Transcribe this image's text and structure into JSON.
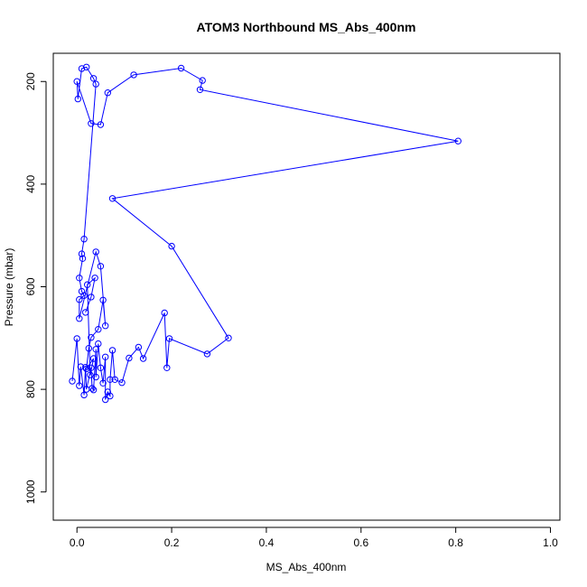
{
  "chart_data": {
    "type": "line",
    "title": "ATOM3 Northbound MS_Abs_400nm",
    "xlabel": "MS_Abs_400nm",
    "ylabel": "Pressure (mbar)",
    "xlim": [
      -0.05,
      1.02
    ],
    "ylim": [
      1055,
      145
    ],
    "y_inverted": true,
    "xticks": [
      0.0,
      0.2,
      0.4,
      0.6,
      0.8,
      1.0
    ],
    "xtick_labels": [
      "0.0",
      "0.2",
      "0.4",
      "0.6",
      "0.8",
      "1.0"
    ],
    "yticks": [
      200,
      400,
      600,
      800,
      1000
    ],
    "ytick_labels": [
      "200",
      "400",
      "600",
      "800",
      "1000"
    ],
    "grid": false,
    "markers": "open-circle",
    "series": [
      {
        "color": "#0000ff",
        "points": [
          {
            "x": -0.01,
            "y": 784
          },
          {
            "x": 0.0,
            "y": 701
          },
          {
            "x": 0.005,
            "y": 793
          },
          {
            "x": 0.008,
            "y": 756
          },
          {
            "x": 0.015,
            "y": 811
          },
          {
            "x": 0.018,
            "y": 757
          },
          {
            "x": 0.02,
            "y": 800
          },
          {
            "x": 0.03,
            "y": 758
          },
          {
            "x": 0.032,
            "y": 798
          },
          {
            "x": 0.035,
            "y": 801
          },
          {
            "x": 0.04,
            "y": 722
          },
          {
            "x": 0.04,
            "y": 776
          },
          {
            "x": 0.045,
            "y": 711
          },
          {
            "x": 0.05,
            "y": 758
          },
          {
            "x": 0.055,
            "y": 788
          },
          {
            "x": 0.06,
            "y": 737
          },
          {
            "x": 0.06,
            "y": 820
          },
          {
            "x": 0.065,
            "y": 805
          },
          {
            "x": 0.07,
            "y": 813
          },
          {
            "x": 0.07,
            "y": 781
          },
          {
            "x": 0.075,
            "y": 724
          },
          {
            "x": 0.08,
            "y": 781
          },
          {
            "x": 0.095,
            "y": 787
          },
          {
            "x": 0.11,
            "y": 739
          },
          {
            "x": 0.13,
            "y": 718
          },
          {
            "x": 0.14,
            "y": 740
          },
          {
            "x": 0.185,
            "y": 651
          },
          {
            "x": 0.19,
            "y": 758
          },
          {
            "x": 0.195,
            "y": 701
          },
          {
            "x": 0.275,
            "y": 731
          },
          {
            "x": 0.32,
            "y": 700
          },
          {
            "x": 0.2,
            "y": 521
          },
          {
            "x": 0.075,
            "y": 428
          },
          {
            "x": 0.805,
            "y": 316
          },
          {
            "x": 0.26,
            "y": 216
          },
          {
            "x": 0.265,
            "y": 198
          },
          {
            "x": 0.22,
            "y": 174
          },
          {
            "x": 0.12,
            "y": 187
          },
          {
            "x": 0.065,
            "y": 222
          },
          {
            "x": 0.05,
            "y": 284
          },
          {
            "x": 0.03,
            "y": 282
          },
          {
            "x": 0.0,
            "y": 200
          },
          {
            "x": 0.002,
            "y": 234
          },
          {
            "x": 0.01,
            "y": 175
          },
          {
            "x": 0.02,
            "y": 172
          },
          {
            "x": 0.035,
            "y": 194
          },
          {
            "x": 0.04,
            "y": 205
          },
          {
            "x": 0.015,
            "y": 507
          },
          {
            "x": 0.01,
            "y": 536
          },
          {
            "x": 0.012,
            "y": 545
          },
          {
            "x": 0.005,
            "y": 583
          },
          {
            "x": 0.01,
            "y": 609
          },
          {
            "x": 0.015,
            "y": 617
          },
          {
            "x": 0.005,
            "y": 625
          },
          {
            "x": 0.005,
            "y": 662
          },
          {
            "x": 0.04,
            "y": 532
          },
          {
            "x": 0.05,
            "y": 560
          },
          {
            "x": 0.06,
            "y": 676
          },
          {
            "x": 0.055,
            "y": 626
          },
          {
            "x": 0.045,
            "y": 683
          },
          {
            "x": 0.03,
            "y": 699
          },
          {
            "x": 0.025,
            "y": 720
          },
          {
            "x": 0.02,
            "y": 760
          },
          {
            "x": 0.035,
            "y": 740
          },
          {
            "x": 0.028,
            "y": 772
          },
          {
            "x": 0.022,
            "y": 596
          },
          {
            "x": 0.038,
            "y": 583
          },
          {
            "x": 0.03,
            "y": 620
          },
          {
            "x": 0.018,
            "y": 650
          }
        ]
      }
    ]
  }
}
